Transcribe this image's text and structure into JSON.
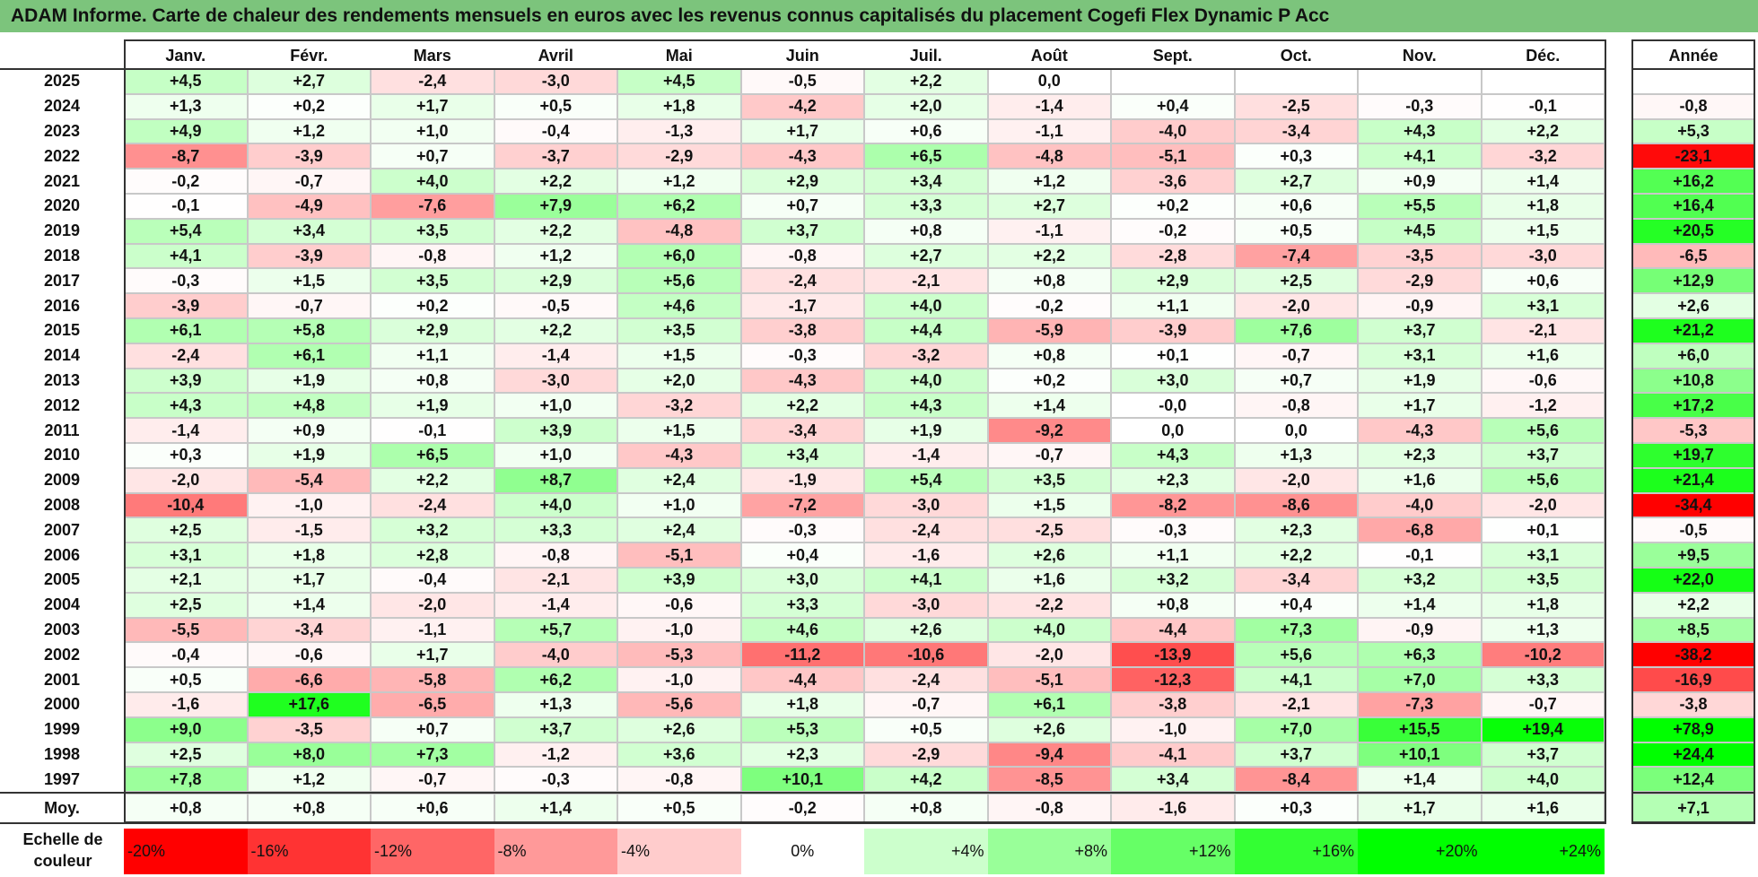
{
  "title": "ADAM Informe. Carte de chaleur des rendements mensuels en euros avec les revenus connus capitalisés du placement Cogefi Flex Dynamic P Acc",
  "colors": {
    "title_bg": "#7cc47c",
    "negative": "#ff0000",
    "positive": "#00ff00",
    "neutral": "#ffffff",
    "grid": "#c8c8c8",
    "frame": "#333333"
  },
  "chart_data": {
    "type": "heatmap",
    "columns": [
      "Janv.",
      "Févr.",
      "Mars",
      "Avril",
      "Mai",
      "Juin",
      "Juil.",
      "Août",
      "Sept.",
      "Oct.",
      "Nov.",
      "Déc."
    ],
    "year_column_label": "Année",
    "rows": [
      {
        "year": "2025",
        "values": [
          "+4,5",
          "+2,7",
          "-2,4",
          "-3,0",
          "+4,5",
          "-0,5",
          "+2,2",
          "0,0",
          "",
          "",
          "",
          ""
        ],
        "annual": ""
      },
      {
        "year": "2024",
        "values": [
          "+1,3",
          "+0,2",
          "+1,7",
          "+0,5",
          "+1,8",
          "-4,2",
          "+2,0",
          "-1,4",
          "+0,4",
          "-2,5",
          "-0,3",
          "-0,1"
        ],
        "annual": "-0,8"
      },
      {
        "year": "2023",
        "values": [
          "+4,9",
          "+1,2",
          "+1,0",
          "-0,4",
          "-1,3",
          "+1,7",
          "+0,6",
          "-1,1",
          "-4,0",
          "-3,4",
          "+4,3",
          "+2,2"
        ],
        "annual": "+5,3"
      },
      {
        "year": "2022",
        "values": [
          "-8,7",
          "-3,9",
          "+0,7",
          "-3,7",
          "-2,9",
          "-4,3",
          "+6,5",
          "-4,8",
          "-5,1",
          "+0,3",
          "+4,1",
          "-3,2"
        ],
        "annual": "-23,1"
      },
      {
        "year": "2021",
        "values": [
          "-0,2",
          "-0,7",
          "+4,0",
          "+2,2",
          "+1,2",
          "+2,9",
          "+3,4",
          "+1,2",
          "-3,6",
          "+2,7",
          "+0,9",
          "+1,4"
        ],
        "annual": "+16,2"
      },
      {
        "year": "2020",
        "values": [
          "-0,1",
          "-4,9",
          "-7,6",
          "+7,9",
          "+6,2",
          "+0,7",
          "+3,3",
          "+2,7",
          "+0,2",
          "+0,6",
          "+5,5",
          "+1,8"
        ],
        "annual": "+16,4"
      },
      {
        "year": "2019",
        "values": [
          "+5,4",
          "+3,4",
          "+3,5",
          "+2,2",
          "-4,8",
          "+3,7",
          "+0,8",
          "-1,1",
          "-0,2",
          "+0,5",
          "+4,5",
          "+1,5"
        ],
        "annual": "+20,5"
      },
      {
        "year": "2018",
        "values": [
          "+4,1",
          "-3,9",
          "-0,8",
          "+1,2",
          "+6,0",
          "-0,8",
          "+2,7",
          "+2,2",
          "-2,8",
          "-7,4",
          "-3,5",
          "-3,0"
        ],
        "annual": "-6,5"
      },
      {
        "year": "2017",
        "values": [
          "-0,3",
          "+1,5",
          "+3,5",
          "+2,9",
          "+5,6",
          "-2,4",
          "-2,1",
          "+0,8",
          "+2,9",
          "+2,5",
          "-2,9",
          "+0,6"
        ],
        "annual": "+12,9"
      },
      {
        "year": "2016",
        "values": [
          "-3,9",
          "-0,7",
          "+0,2",
          "-0,5",
          "+4,6",
          "-1,7",
          "+4,0",
          "-0,2",
          "+1,1",
          "-2,0",
          "-0,9",
          "+3,1"
        ],
        "annual": "+2,6"
      },
      {
        "year": "2015",
        "values": [
          "+6,1",
          "+5,8",
          "+2,9",
          "+2,2",
          "+3,5",
          "-3,8",
          "+4,4",
          "-5,9",
          "-3,9",
          "+7,6",
          "+3,7",
          "-2,1"
        ],
        "annual": "+21,2"
      },
      {
        "year": "2014",
        "values": [
          "-2,4",
          "+6,1",
          "+1,1",
          "-1,4",
          "+1,5",
          "-0,3",
          "-3,2",
          "+0,8",
          "+0,1",
          "-0,7",
          "+3,1",
          "+1,6"
        ],
        "annual": "+6,0"
      },
      {
        "year": "2013",
        "values": [
          "+3,9",
          "+1,9",
          "+0,8",
          "-3,0",
          "+2,0",
          "-4,3",
          "+4,0",
          "+0,2",
          "+3,0",
          "+0,7",
          "+1,9",
          "-0,6"
        ],
        "annual": "+10,8"
      },
      {
        "year": "2012",
        "values": [
          "+4,3",
          "+4,8",
          "+1,9",
          "+1,0",
          "-3,2",
          "+2,2",
          "+4,3",
          "+1,4",
          "-0,0",
          "-0,8",
          "+1,7",
          "-1,2"
        ],
        "annual": "+17,2"
      },
      {
        "year": "2011",
        "values": [
          "-1,4",
          "+0,9",
          "-0,1",
          "+3,9",
          "+1,5",
          "-3,4",
          "+1,9",
          "-9,2",
          "0,0",
          "0,0",
          "-4,3",
          "+5,6"
        ],
        "annual": "-5,3"
      },
      {
        "year": "2010",
        "values": [
          "+0,3",
          "+1,9",
          "+6,5",
          "+1,0",
          "-4,3",
          "+3,4",
          "-1,4",
          "-0,7",
          "+4,3",
          "+1,3",
          "+2,3",
          "+3,7"
        ],
        "annual": "+19,7"
      },
      {
        "year": "2009",
        "values": [
          "-2,0",
          "-5,4",
          "+2,2",
          "+8,7",
          "+2,4",
          "-1,9",
          "+5,4",
          "+3,5",
          "+2,3",
          "-2,0",
          "+1,6",
          "+5,6"
        ],
        "annual": "+21,4"
      },
      {
        "year": "2008",
        "values": [
          "-10,4",
          "-1,0",
          "-2,4",
          "+4,0",
          "+1,0",
          "-7,2",
          "-3,0",
          "+1,5",
          "-8,2",
          "-8,6",
          "-4,0",
          "-2,0"
        ],
        "annual": "-34,4"
      },
      {
        "year": "2007",
        "values": [
          "+2,5",
          "-1,5",
          "+3,2",
          "+3,3",
          "+2,4",
          "-0,3",
          "-2,4",
          "-2,5",
          "-0,3",
          "+2,3",
          "-6,8",
          "+0,1"
        ],
        "annual": "-0,5"
      },
      {
        "year": "2006",
        "values": [
          "+3,1",
          "+1,8",
          "+2,8",
          "-0,8",
          "-5,1",
          "+0,4",
          "-1,6",
          "+2,6",
          "+1,1",
          "+2,2",
          "-0,1",
          "+3,1"
        ],
        "annual": "+9,5"
      },
      {
        "year": "2005",
        "values": [
          "+2,1",
          "+1,7",
          "-0,4",
          "-2,1",
          "+3,9",
          "+3,0",
          "+4,1",
          "+1,6",
          "+3,2",
          "-3,4",
          "+3,2",
          "+3,5"
        ],
        "annual": "+22,0"
      },
      {
        "year": "2004",
        "values": [
          "+2,5",
          "+1,4",
          "-2,0",
          "-1,4",
          "-0,6",
          "+3,3",
          "-3,0",
          "-2,2",
          "+0,8",
          "+0,4",
          "+1,4",
          "+1,8"
        ],
        "annual": "+2,2"
      },
      {
        "year": "2003",
        "values": [
          "-5,5",
          "-3,4",
          "-1,1",
          "+5,7",
          "-1,0",
          "+4,6",
          "+2,6",
          "+4,0",
          "-4,4",
          "+7,3",
          "-0,9",
          "+1,3"
        ],
        "annual": "+8,5"
      },
      {
        "year": "2002",
        "values": [
          "-0,4",
          "-0,6",
          "+1,7",
          "-4,0",
          "-5,3",
          "-11,2",
          "-10,6",
          "-2,0",
          "-13,9",
          "+5,6",
          "+6,3",
          "-10,2"
        ],
        "annual": "-38,2"
      },
      {
        "year": "2001",
        "values": [
          "+0,5",
          "-6,6",
          "-5,8",
          "+6,2",
          "-1,0",
          "-4,4",
          "-2,4",
          "-5,1",
          "-12,3",
          "+4,1",
          "+7,0",
          "+3,3"
        ],
        "annual": "-16,9"
      },
      {
        "year": "2000",
        "values": [
          "-1,6",
          "+17,6",
          "-6,5",
          "+1,3",
          "-5,6",
          "+1,8",
          "-0,7",
          "+6,1",
          "-3,8",
          "-2,1",
          "-7,3",
          "-0,7"
        ],
        "annual": "-3,8"
      },
      {
        "year": "1999",
        "values": [
          "+9,0",
          "-3,5",
          "+0,7",
          "+3,7",
          "+2,6",
          "+5,3",
          "+0,5",
          "+2,6",
          "-1,0",
          "+7,0",
          "+15,5",
          "+19,4"
        ],
        "annual": "+78,9"
      },
      {
        "year": "1998",
        "values": [
          "+2,5",
          "+8,0",
          "+7,3",
          "-1,2",
          "+3,6",
          "+2,3",
          "-2,9",
          "-9,4",
          "-4,1",
          "+3,7",
          "+10,1",
          "+3,7"
        ],
        "annual": "+24,4"
      },
      {
        "year": "1997",
        "values": [
          "+7,8",
          "+1,2",
          "-0,7",
          "-0,3",
          "-0,8",
          "+10,1",
          "+4,2",
          "-8,5",
          "+3,4",
          "-8,4",
          "+1,4",
          "+4,0"
        ],
        "annual": "+12,4"
      }
    ],
    "average": {
      "label": "Moy.",
      "values": [
        "+0,8",
        "+0,8",
        "+0,6",
        "+1,4",
        "+0,5",
        "-0,2",
        "+0,8",
        "-0,8",
        "-1,6",
        "+0,3",
        "+1,7",
        "+1,6"
      ],
      "annual": "+7,1"
    },
    "color_scale": {
      "label": "Echelle de couleur",
      "stops": [
        {
          "label": "-20%",
          "value": -20
        },
        {
          "label": "-16%",
          "value": -16
        },
        {
          "label": "-12%",
          "value": -12
        },
        {
          "label": "-8%",
          "value": -8
        },
        {
          "label": "-4%",
          "value": -4
        },
        {
          "label": "0%",
          "value": 0
        },
        {
          "label": "+4%",
          "value": 4
        },
        {
          "label": "+8%",
          "value": 8
        },
        {
          "label": "+12%",
          "value": 12
        },
        {
          "label": "+16%",
          "value": 16
        },
        {
          "label": "+20%",
          "value": 20
        },
        {
          "label": "+24%",
          "value": 24
        }
      ]
    }
  }
}
